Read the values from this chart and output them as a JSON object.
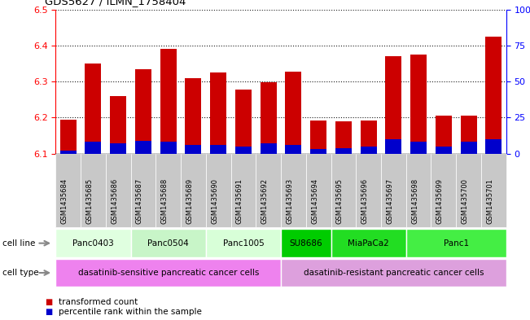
{
  "title": "GDS5627 / ILMN_1758404",
  "samples": [
    "GSM1435684",
    "GSM1435685",
    "GSM1435686",
    "GSM1435687",
    "GSM1435688",
    "GSM1435689",
    "GSM1435690",
    "GSM1435691",
    "GSM1435692",
    "GSM1435693",
    "GSM1435694",
    "GSM1435695",
    "GSM1435696",
    "GSM1435697",
    "GSM1435698",
    "GSM1435699",
    "GSM1435700",
    "GSM1435701"
  ],
  "transformed_count": [
    6.195,
    6.35,
    6.26,
    6.335,
    6.39,
    6.31,
    6.325,
    6.278,
    6.298,
    6.328,
    6.192,
    6.19,
    6.192,
    6.37,
    6.375,
    6.205,
    6.205,
    6.425
  ],
  "percentile_rank": [
    2,
    8,
    7,
    9,
    8,
    6,
    6,
    5,
    7,
    6,
    3,
    4,
    5,
    10,
    8,
    5,
    8,
    10
  ],
  "ylim_left": [
    6.1,
    6.5
  ],
  "ylim_right": [
    0,
    100
  ],
  "yticks_left": [
    6.1,
    6.2,
    6.3,
    6.4,
    6.5
  ],
  "yticks_right": [
    0,
    25,
    50,
    75,
    100
  ],
  "ytick_labels_right": [
    "0",
    "25",
    "50",
    "75",
    "100%"
  ],
  "bar_bottom": 6.1,
  "n_samples": 18,
  "cell_lines": [
    {
      "label": "Panc0403",
      "start": 0,
      "end": 3,
      "color": "#e0ffe0"
    },
    {
      "label": "Panc0504",
      "start": 3,
      "end": 6,
      "color": "#c8f5c8"
    },
    {
      "label": "Panc1005",
      "start": 6,
      "end": 9,
      "color": "#d8ffd8"
    },
    {
      "label": "SU8686",
      "start": 9,
      "end": 11,
      "color": "#00cc00"
    },
    {
      "label": "MiaPaCa2",
      "start": 11,
      "end": 14,
      "color": "#22dd22"
    },
    {
      "label": "Panc1",
      "start": 14,
      "end": 18,
      "color": "#44ee44"
    }
  ],
  "cell_types": [
    {
      "label": "dasatinib-sensitive pancreatic cancer cells",
      "start": 0,
      "end": 9,
      "color": "#ee82ee"
    },
    {
      "label": "dasatinib-resistant pancreatic cancer cells",
      "start": 9,
      "end": 18,
      "color": "#dda0dd"
    }
  ],
  "bar_color_red": "#cc0000",
  "bar_color_blue": "#0000cc",
  "col_bg_color": "#c8c8c8",
  "legend_items": [
    {
      "label": "transformed count",
      "color": "#cc0000"
    },
    {
      "label": "percentile rank within the sample",
      "color": "#0000cc"
    }
  ]
}
